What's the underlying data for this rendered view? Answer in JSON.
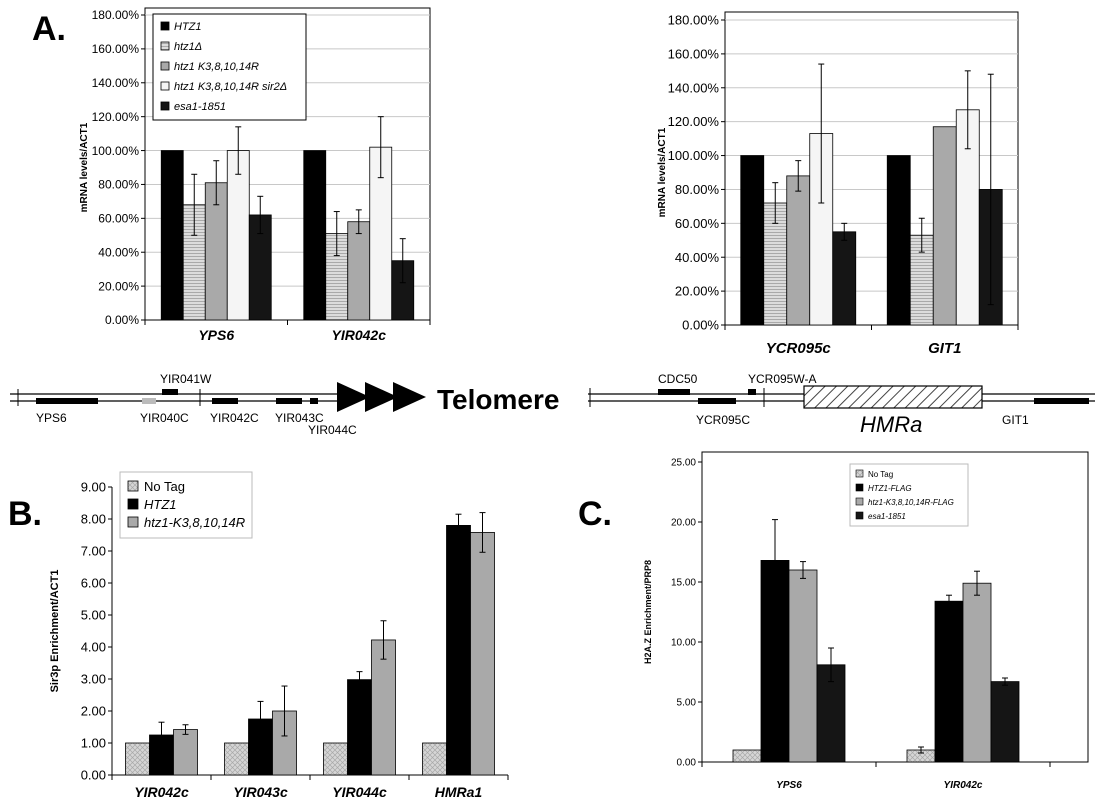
{
  "panels": {
    "a": "A.",
    "b": "B.",
    "c": "C."
  },
  "chart_data": [
    {
      "type": "bar",
      "id": "A1",
      "title": "",
      "xlabel": "",
      "ylabel": "mRNA levels/ACT1",
      "ylim": [
        0,
        180
      ],
      "yticks": [
        "0.00%",
        "20.00%",
        "40.00%",
        "60.00%",
        "80.00%",
        "100.00%",
        "120.00%",
        "140.00%",
        "160.00%",
        "180.00%"
      ],
      "categories": [
        "YPS6",
        "YIR042c"
      ],
      "legend_position": "top-left",
      "grid": true,
      "series": [
        {
          "name": "HTZ1",
          "values": [
            100,
            100
          ],
          "errors": [
            0,
            0
          ]
        },
        {
          "name": "htz1Δ",
          "values": [
            68,
            51
          ],
          "errors": [
            18,
            13
          ]
        },
        {
          "name": "htz1 K3,8,10,14R",
          "values": [
            81,
            58
          ],
          "errors": [
            13,
            7
          ]
        },
        {
          "name": "htz1 K3,8,10,14R sir2Δ",
          "values": [
            100,
            102
          ],
          "errors": [
            14,
            18
          ]
        },
        {
          "name": "esa1-1851",
          "values": [
            62,
            35
          ],
          "errors": [
            11,
            13
          ]
        }
      ]
    },
    {
      "type": "bar",
      "id": "A2",
      "title": "",
      "xlabel": "",
      "ylabel": "mRNA levels/ACT1",
      "ylim": [
        0,
        180
      ],
      "yticks": [
        "0.00%",
        "20.00%",
        "40.00%",
        "60.00%",
        "80.00%",
        "100.00%",
        "120.00%",
        "140.00%",
        "160.00%",
        "180.00%"
      ],
      "categories": [
        "YCR095c",
        "GIT1"
      ],
      "grid": true,
      "series": [
        {
          "values": [
            100,
            100
          ],
          "errors": [
            0,
            0
          ]
        },
        {
          "values": [
            72,
            53
          ],
          "errors": [
            12,
            10
          ]
        },
        {
          "values": [
            88,
            117
          ],
          "errors": [
            9,
            0
          ]
        },
        {
          "values": [
            113,
            127
          ],
          "errors": [
            41,
            23
          ]
        },
        {
          "values": [
            55,
            80
          ],
          "errors": [
            5,
            68
          ]
        }
      ]
    },
    {
      "type": "bar",
      "id": "B",
      "title": "",
      "xlabel": "",
      "ylabel": "Sir3p Enrichment/ACT1",
      "ylim": [
        0,
        9
      ],
      "yticks": [
        "0.00",
        "1.00",
        "2.00",
        "3.00",
        "4.00",
        "5.00",
        "6.00",
        "7.00",
        "8.00",
        "9.00"
      ],
      "categories": [
        "YIR042c",
        "YIR043c",
        "YIR044c",
        "HMRa1"
      ],
      "legend_position": "top-left",
      "grid": false,
      "series": [
        {
          "name": "No Tag",
          "values": [
            1.0,
            1.0,
            1.0,
            1.0
          ],
          "errors": [
            0,
            0,
            0,
            0
          ]
        },
        {
          "name": "HTZ1",
          "values": [
            1.25,
            1.75,
            2.98,
            7.8
          ],
          "errors": [
            0.4,
            0.55,
            0.25,
            0.35
          ]
        },
        {
          "name": "htz1-K3,8,10,14R",
          "values": [
            1.42,
            2.0,
            4.22,
            7.58
          ],
          "errors": [
            0.15,
            0.78,
            0.6,
            0.62
          ]
        }
      ]
    },
    {
      "type": "bar",
      "id": "C",
      "title": "",
      "xlabel": "",
      "ylabel": "H2A.Z Enrichment/PRP8",
      "ylim": [
        0,
        25
      ],
      "yticks": [
        "0.00",
        "5.00",
        "10.00",
        "15.00",
        "20.00",
        "25.00"
      ],
      "categories": [
        "YPS6",
        "YIR042c"
      ],
      "legend_position": "top-right",
      "grid": false,
      "series": [
        {
          "name": "No Tag",
          "values": [
            1.0,
            1.0
          ],
          "errors": [
            0,
            0.25
          ]
        },
        {
          "name": "HTZ1-FLAG",
          "values": [
            16.8,
            13.4
          ],
          "errors": [
            3.4,
            0.5
          ]
        },
        {
          "name": "htz1-K3,8,10,14R-FLAG",
          "values": [
            16.0,
            14.9
          ],
          "errors": [
            0.7,
            1.0
          ]
        },
        {
          "name": "esa1-1851",
          "values": [
            8.1,
            6.7
          ],
          "errors": [
            1.4,
            0.3
          ]
        }
      ]
    }
  ],
  "genome": {
    "left_genes": [
      "YPS6",
      "YIR041W",
      "YIR040C",
      "YIR042C",
      "YIR043C",
      "YIR044C"
    ],
    "telomere_label": "Telomere",
    "right_genes": [
      "CDC50",
      "YCR095W-A",
      "YCR095C",
      "HMRa",
      "GIT1"
    ]
  }
}
